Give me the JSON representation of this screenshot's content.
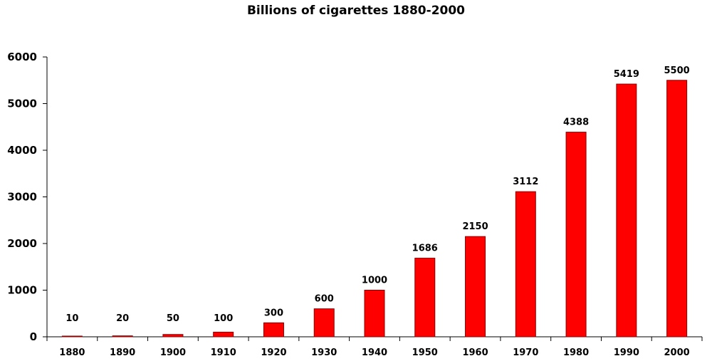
{
  "chart_data": {
    "type": "bar",
    "title": "Billions of cigarettes 1880-2000",
    "xlabel": "",
    "ylabel": "",
    "categories": [
      "1880",
      "1890",
      "1900",
      "1910",
      "1920",
      "1930",
      "1940",
      "1950",
      "1960",
      "1970",
      "1980",
      "1990",
      "2000"
    ],
    "values": [
      10,
      20,
      50,
      100,
      300,
      600,
      1000,
      1686,
      2150,
      3112,
      4388,
      5419,
      5500
    ],
    "data_labels": [
      "10",
      "20",
      "50",
      "100",
      "300",
      "600",
      "1000",
      "1686",
      "2150",
      "3112",
      "4388",
      "5419",
      "5500"
    ],
    "y_ticks": [
      "0",
      "1000",
      "2000",
      "3000",
      "4000",
      "5000",
      "6000"
    ],
    "ylim": [
      0,
      6000
    ],
    "grid": false,
    "legend": "none",
    "bar_color": "#ff0000",
    "bar_edge_color": "#8b0000"
  }
}
